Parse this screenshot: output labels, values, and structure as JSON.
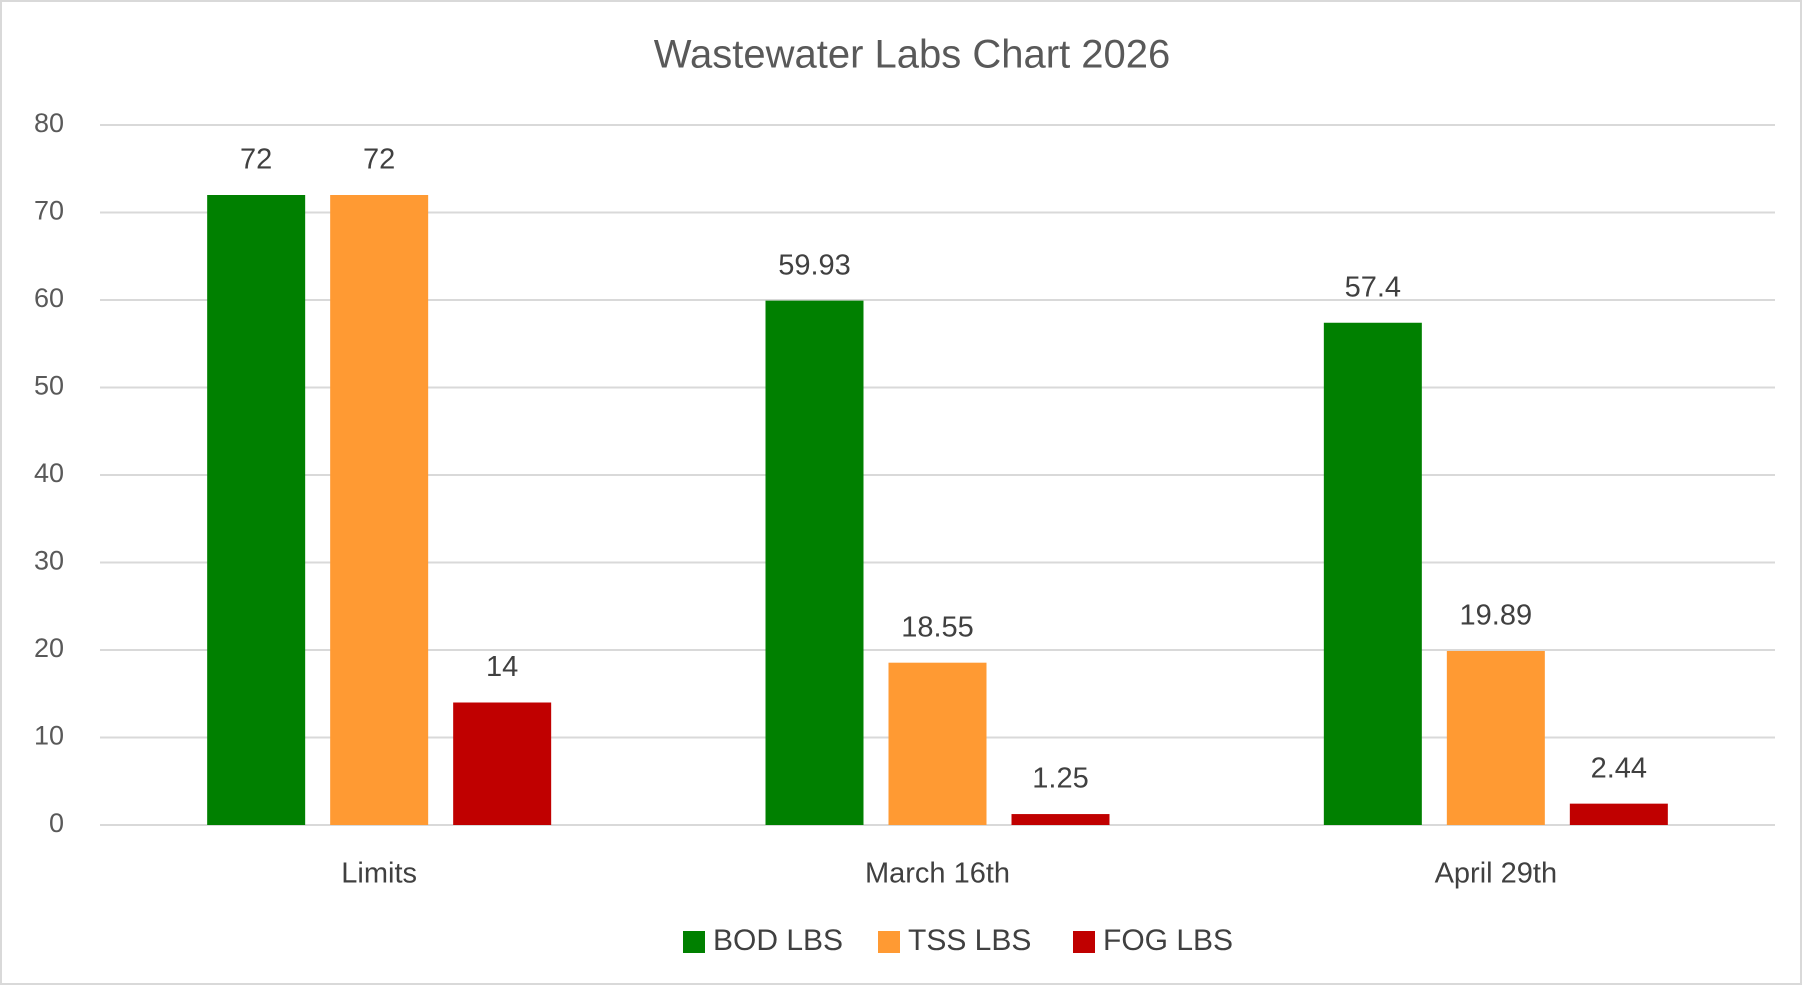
{
  "chart_data": {
    "type": "bar",
    "title": "Wastewater Labs Chart 2026",
    "categories": [
      "Limits",
      "March 16th",
      "April 29th"
    ],
    "series": [
      {
        "name": "BOD LBS",
        "color": "#008000",
        "values": [
          72,
          59.93,
          57.4
        ]
      },
      {
        "name": "TSS LBS",
        "color": "#ff9a33",
        "values": [
          72,
          18.55,
          19.89
        ]
      },
      {
        "name": "FOG LBS",
        "color": "#c00000",
        "values": [
          14,
          1.25,
          2.44
        ]
      }
    ],
    "ylim": [
      0,
      80
    ],
    "yticks": [
      0,
      10,
      20,
      30,
      40,
      50,
      60,
      70,
      80
    ],
    "grid": true,
    "legend": "bottom"
  }
}
